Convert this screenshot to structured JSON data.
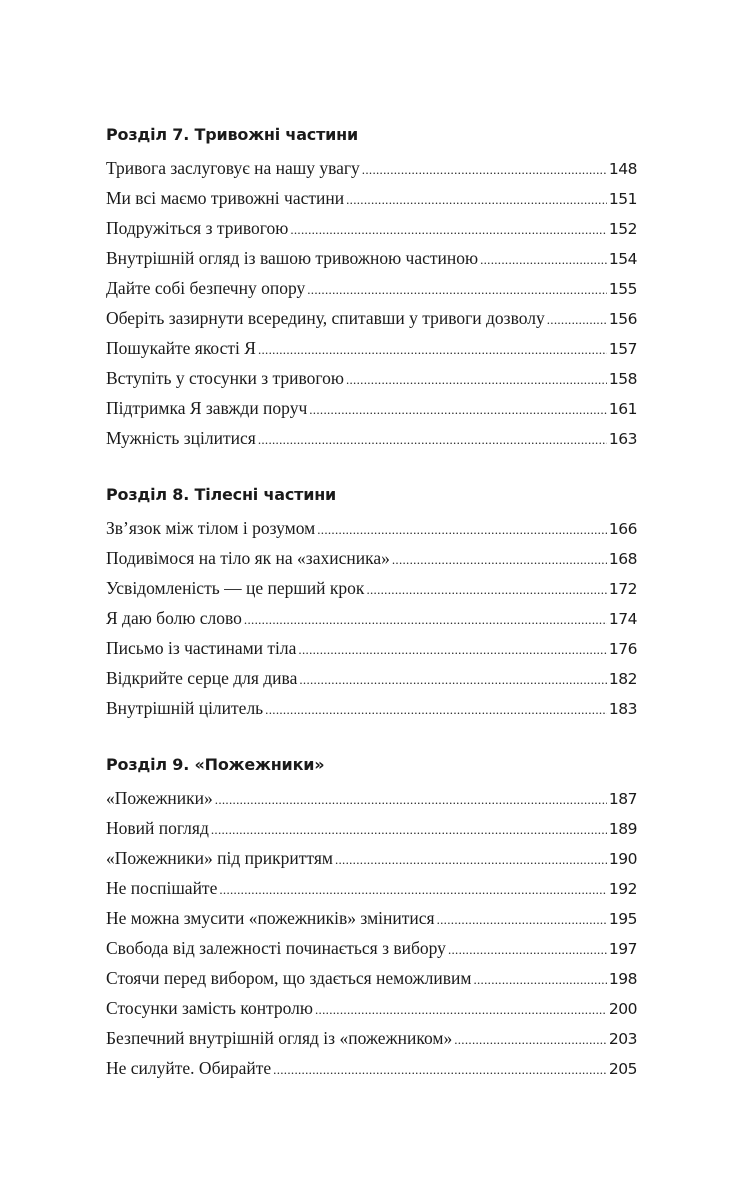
{
  "sections": [
    {
      "heading": "Розділ 7. Тривожні частини",
      "entries": [
        {
          "title": "Тривога заслуговує на нашу увагу",
          "page": "148"
        },
        {
          "title": "Ми всі маємо тривожні частини",
          "page": "151"
        },
        {
          "title": "Подружіться з тривогою",
          "page": "152"
        },
        {
          "title": "Внутрішній огляд із вашою тривожною частиною",
          "page": "154"
        },
        {
          "title": "Дайте собі безпечну опору",
          "page": "155"
        },
        {
          "title": "Оберіть зазирнути всередину, спитавши у тривоги дозволу",
          "page": "156"
        },
        {
          "title": "Пошукайте якості Я",
          "page": "157"
        },
        {
          "title": "Вступіть у стосунки з тривогою",
          "page": "158"
        },
        {
          "title": "Підтримка Я завжди поруч",
          "page": "161"
        },
        {
          "title": "Мужність зцілитися",
          "page": "163"
        }
      ]
    },
    {
      "heading": "Розділ 8. Тілесні частини",
      "entries": [
        {
          "title": "Зв’язок між тілом і розумом",
          "page": "166"
        },
        {
          "title": "Подивімося на тіло як на «захисника»",
          "page": "168"
        },
        {
          "title": "Усвідомленість — це перший крок",
          "page": "172"
        },
        {
          "title": "Я даю болю слово",
          "page": "174"
        },
        {
          "title": "Письмо із частинами тіла",
          "page": "176"
        },
        {
          "title": "Відкрийте серце для дива",
          "page": "182"
        },
        {
          "title": "Внутрішній цілитель",
          "page": "183"
        }
      ]
    },
    {
      "heading": "Розділ 9. «Пожежники»",
      "entries": [
        {
          "title": "«Пожежники»",
          "page": "187"
        },
        {
          "title": "Новий погляд",
          "page": "189"
        },
        {
          "title": "«Пожежники» під прикриттям",
          "page": "190"
        },
        {
          "title": "Не поспішайте",
          "page": "192"
        },
        {
          "title": "Не можна змусити «пожежників» змінитися",
          "page": "195"
        },
        {
          "title": "Свобода від залежності починається з вибору",
          "page": "197"
        },
        {
          "title": "Стоячи перед вибором, що здається неможливим",
          "page": "198"
        },
        {
          "title": "Стосунки замість контролю",
          "page": "200"
        },
        {
          "title": "Безпечний внутрішній огляд із «пожежником»",
          "page": "203"
        },
        {
          "title": "Не силуйте. Обирайте",
          "page": "205"
        }
      ]
    }
  ]
}
